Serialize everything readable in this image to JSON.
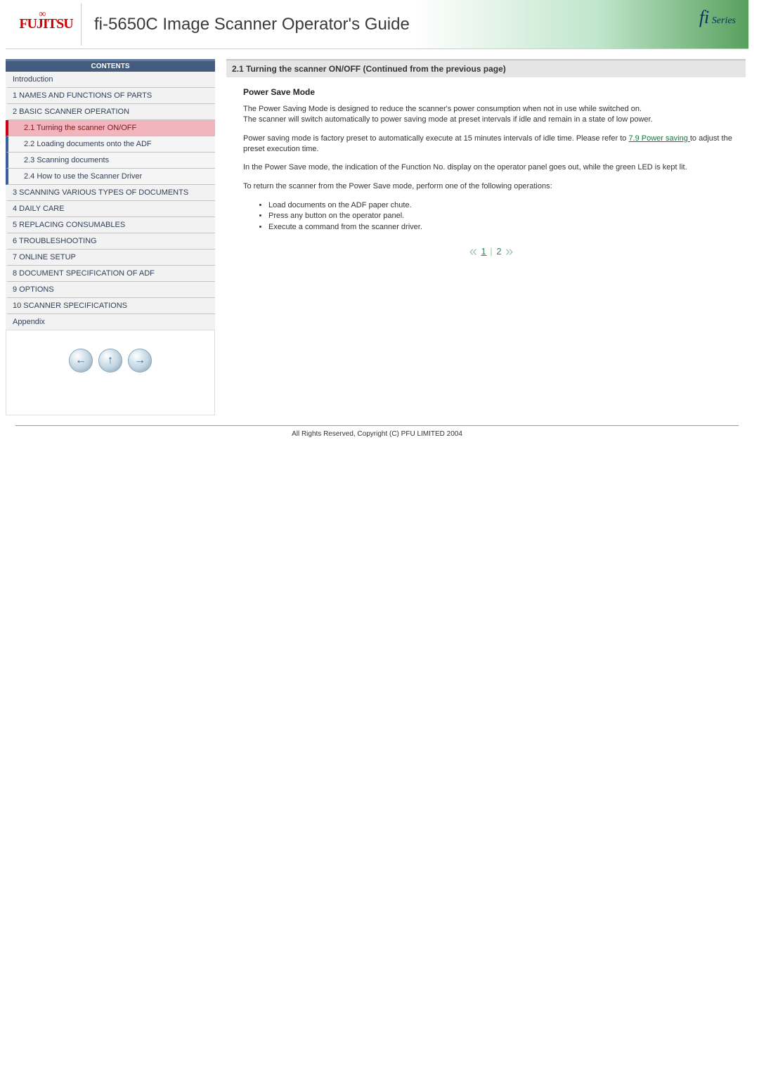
{
  "header": {
    "brand": "FUJITSU",
    "title": "fi-5650C Image Scanner Operator's Guide",
    "series": "fi Series"
  },
  "sidebar": {
    "contents_label": "CONTENTS",
    "items": [
      {
        "label": "Introduction",
        "type": "top"
      },
      {
        "label": "1 NAMES AND FUNCTIONS OF PARTS",
        "type": "top"
      },
      {
        "label": "2 BASIC SCANNER OPERATION",
        "type": "top"
      },
      {
        "label": "2.1 Turning the scanner ON/OFF",
        "type": "child",
        "active": true
      },
      {
        "label": "2.2 Loading documents onto the ADF",
        "type": "child"
      },
      {
        "label": "2.3 Scanning documents",
        "type": "child"
      },
      {
        "label": "2.4 How to use the Scanner Driver",
        "type": "child"
      },
      {
        "label": "3 SCANNING VARIOUS TYPES OF DOCUMENTS",
        "type": "top"
      },
      {
        "label": "4 DAILY CARE",
        "type": "top"
      },
      {
        "label": "5 REPLACING CONSUMABLES",
        "type": "top"
      },
      {
        "label": "6 TROUBLESHOOTING",
        "type": "top"
      },
      {
        "label": "7 ONLINE SETUP",
        "type": "top"
      },
      {
        "label": "8 DOCUMENT SPECIFICATION OF ADF",
        "type": "top"
      },
      {
        "label": "9 OPTIONS",
        "type": "top"
      },
      {
        "label": "10 SCANNER SPECIFICATIONS",
        "type": "top"
      },
      {
        "label": "Appendix",
        "type": "top"
      }
    ],
    "nav_buttons": {
      "back": "←",
      "up": "↑",
      "forward": "→"
    }
  },
  "content": {
    "section_title": "2.1 Turning the scanner ON/OFF (Continued from the previous page)",
    "subhead": "Power Save Mode",
    "p1a": "The Power Saving Mode is designed to reduce the scanner's power consumption when not in use while switched on.",
    "p1b": "The scanner will switch automatically to power saving mode at preset intervals if idle and remain in a state of low power.",
    "p2_pre": "Power saving mode is factory preset to automatically execute at 15 minutes intervals of idle time. Please refer to ",
    "p2_link": "7.9 Power saving ",
    "p2_post": "to adjust the preset execution time.",
    "p3": "In the Power Save mode, the indication of the Function No. display on the operator panel goes out, while the green LED is kept lit.",
    "p4": "To return the scanner from the Power Save mode, perform one of the following operations:",
    "ops": [
      "Load documents on the ADF paper chute.",
      "Press any button on the operator panel.",
      "Execute a command from the scanner driver."
    ],
    "pager": {
      "prev": "«",
      "one": "1",
      "sep": "|",
      "two": "2",
      "next": "»"
    }
  },
  "footer": {
    "copyright": "All Rights Reserved, Copyright (C) PFU LIMITED 2004"
  },
  "colors": {
    "header_accent": "#58a05d",
    "brand_red": "#cc0000",
    "contents_hdr_bg": "#455c81",
    "child_accent": "#3b5f9b",
    "active_bg": "#f2b4bd",
    "active_accent": "#cc0014",
    "link_green": "#0b7a3b"
  }
}
